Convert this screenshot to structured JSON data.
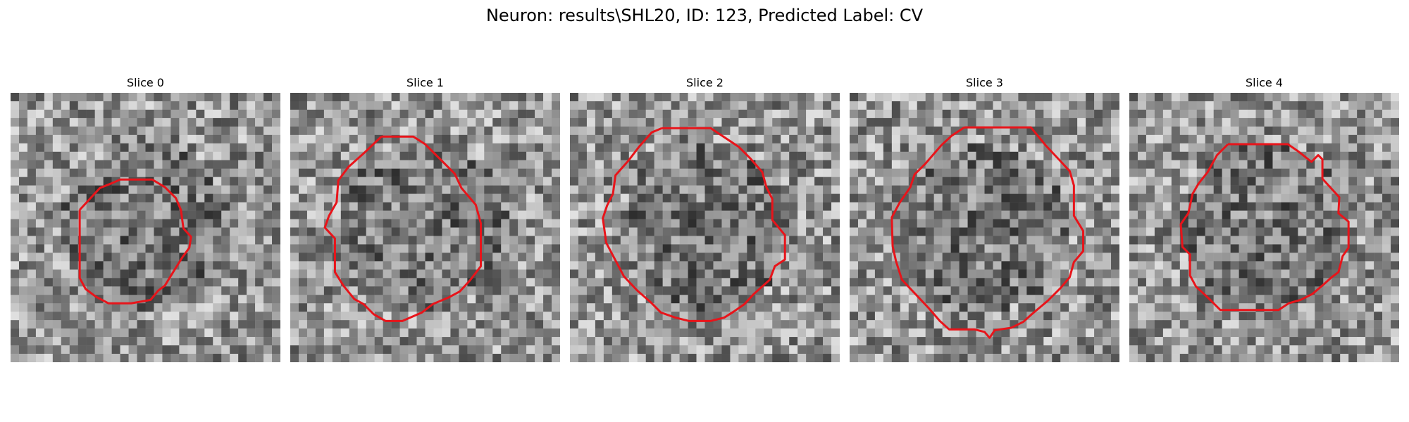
{
  "figure": {
    "title": "Neuron: results\\SHL20, ID: 123, Predicted Label: CV",
    "contour_color": "#e8141a"
  },
  "panels": [
    {
      "title": "Slice 0"
    },
    {
      "title": "Slice 1"
    },
    {
      "title": "Slice 2"
    },
    {
      "title": "Slice 3"
    },
    {
      "title": "Slice 4"
    }
  ]
}
